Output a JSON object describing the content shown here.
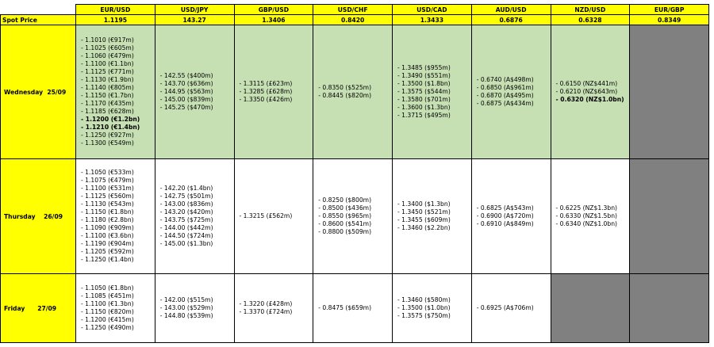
{
  "table": {
    "header_color": "#ffff00",
    "columns": [
      "EUR/USD",
      "USD/JPY",
      "GBP/USD",
      "USD/CHF",
      "USD/CAD",
      "AUD/USD",
      "NZD/USD",
      "EUR/GBP"
    ],
    "spot": {
      "label": "Spot Price",
      "values": [
        "1.1195",
        "143.27",
        "1.3406",
        "0.8420",
        "1.3433",
        "0.6876",
        "0.6328",
        "0.8349"
      ]
    },
    "rows": [
      {
        "label": "Wednesday  25/09",
        "color": "#c6e0b4",
        "cells": [
          {
            "lines": [
              "- 1.1010 (€917m)",
              "- 1.1025 (€605m)",
              "- 1.1060 (€479m)",
              "- 1.1100 (€1.1bn)",
              "- 1.1125 (€771m)",
              "- 1.1130 (€1.9bn)",
              "- 1.1140 (€805m)",
              "- 1.1150 (€1.7bn)",
              "- 1.1170 (€435m)",
              "- 1.1185 (€628m)",
              "- 1.1200 (€1.2bn)",
              "- 1.1210 (€1.4bn)",
              "- 1.1250 (€927m)",
              "- 1.1300 (€549m)"
            ],
            "bold": [
              10,
              11
            ]
          },
          {
            "lines": [
              "- 142.55 ($400m)",
              "- 143.70 ($636m)",
              "- 144.95 ($563m)",
              "- 145.00 ($839m)",
              "- 145.25 ($470m)"
            ]
          },
          {
            "lines": [
              "- 1.3115 (£623m)",
              "- 1.3285 (£628m)",
              "- 1.3350 (£426m)"
            ]
          },
          {
            "lines": [
              "- 0.8350 ($525m)",
              "- 0.8445 ($820m)"
            ]
          },
          {
            "lines": [
              "- 1.3485 ($955m)",
              "- 1.3490 ($551m)",
              "- 1.3500 ($1.8bn)",
              "- 1.3575 ($544m)",
              "- 1.3580 ($701m)",
              "- 1.3600 ($1.3bn)",
              "- 1.3715 ($495m)"
            ]
          },
          {
            "lines": [
              "- 0.6740 (A$498m)",
              "- 0.6850 (A$961m)",
              "- 0.6870 (A$495m)",
              "- 0.6875 (A$434m)"
            ]
          },
          {
            "lines": [
              "- 0.6150 (NZ$441m)",
              "- 0.6210 (NZ$643m)",
              "- 0.6320 (NZ$1.0bn)"
            ],
            "bold": [
              2
            ]
          },
          null
        ]
      },
      {
        "label": "Thursday    26/09",
        "color": "#ffffff",
        "cells": [
          {
            "lines": [
              "- 1.1050 (€533m)",
              "- 1.1075 (€479m)",
              "- 1.1100 (€531m)",
              "- 1.1125 (€560m)",
              "- 1.1130 (€543m)",
              "- 1.1150 (€1.8bn)",
              "- 1.1180 (€2.8bn)",
              "- 1.1090 (€909m)",
              "- 1.1100 (€3.6bn)",
              "- 1.1190 (€904m)",
              "- 1.1205 (€592m)",
              "- 1.1250 (€1.4bn)"
            ]
          },
          {
            "lines": [
              "- 142.20 ($1.4bn)",
              "- 142.75 ($501m)",
              "- 143.00 ($836m)",
              "- 143.20 ($420m)",
              "- 143.75 ($725m)",
              "- 144.00 ($442m)",
              "- 144.50 ($724m)",
              "- 145.00 ($1.3bn)"
            ]
          },
          {
            "lines": [
              "- 1.3215 (£562m)"
            ]
          },
          {
            "lines": [
              "- 0.8250 ($800m)",
              "- 0.8500 ($436m)",
              "- 0.8550 ($965m)",
              "- 0.8600 ($541m)",
              "- 0.8800 ($509m)"
            ]
          },
          {
            "lines": [
              "- 1.3400 ($1.3bn)",
              "- 1.3450 ($521m)",
              "- 1.3455 ($609m)",
              "- 1.3460 ($2.2bn)"
            ]
          },
          {
            "lines": [
              "- 0.6825 (A$543m)",
              "- 0.6900 (A$720m)",
              "- 0.6910 (A$849m)"
            ]
          },
          {
            "lines": [
              "- 0.6225 (NZ$1.3bn)",
              "- 0.6330 (NZ$1.5bn)",
              "- 0.6340 (NZ$1.0bn)"
            ]
          },
          null
        ]
      },
      {
        "label": "Friday      27/09",
        "color": "#ffffff",
        "cells": [
          {
            "lines": [
              "- 1.1050 (€1.8bn)",
              "- 1.1085 (€451m)",
              "- 1.1100 (€1.3bn)",
              "- 1.1150 (€820m)",
              "- 1.1200 (€415m)",
              "- 1.1250 (€490m)"
            ]
          },
          {
            "lines": [
              "- 142.00 ($515m)",
              "- 143.00 ($529m)",
              "- 144.80 ($539m)"
            ]
          },
          {
            "lines": [
              "- 1.3220 (£428m)",
              "- 1.3370 (£724m)"
            ]
          },
          {
            "lines": [
              "- 0.8475 ($659m)"
            ]
          },
          {
            "lines": [
              "- 1.3460 ($580m)",
              "- 1.3500 ($1.0bn)",
              "- 1.3575 ($750m)"
            ]
          },
          {
            "lines": [
              "- 0.6925 (A$706m)"
            ]
          },
          null,
          null
        ]
      }
    ]
  }
}
